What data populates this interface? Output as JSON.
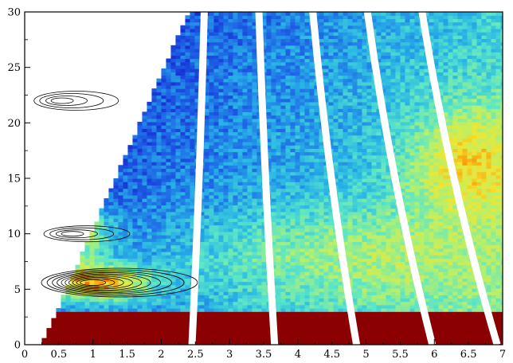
{
  "chart_data": {
    "type": "heatmap",
    "title": "",
    "xlabel": "",
    "ylabel": "",
    "xlim": [
      0,
      7
    ],
    "ylim": [
      0,
      30
    ],
    "x_ticks": [
      "0",
      "0.5",
      "1",
      "1.5",
      "2",
      "2.5",
      "3",
      "3.5",
      "4",
      "4.5",
      "5",
      "5.5",
      "6",
      "6.5",
      "7"
    ],
    "y_ticks": [
      "0",
      "5",
      "10",
      "15",
      "20",
      "25",
      "30"
    ],
    "colormap": [
      "#1414c8",
      "#1e64e6",
      "#28b4e6",
      "#5ae6c8",
      "#b4f06e",
      "#f0e632",
      "#ff8c00",
      "#e61e00",
      "#8b0000"
    ],
    "gaps": [
      {
        "x_bottom": 2.45,
        "x_top": 2.63
      },
      {
        "x_bottom": 3.66,
        "x_top": 3.43
      },
      {
        "x_bottom": 4.86,
        "x_top": 4.22
      },
      {
        "x_bottom": 5.97,
        "x_top": 5.02
      },
      {
        "x_bottom": 6.92,
        "x_top": 5.82
      }
    ],
    "contour_centers": [
      {
        "x": 0.55,
        "y": 22.0
      },
      {
        "x": 0.7,
        "y": 10.0
      },
      {
        "x": 1.0,
        "y": 5.6
      }
    ],
    "grid": false,
    "legend": "none"
  }
}
